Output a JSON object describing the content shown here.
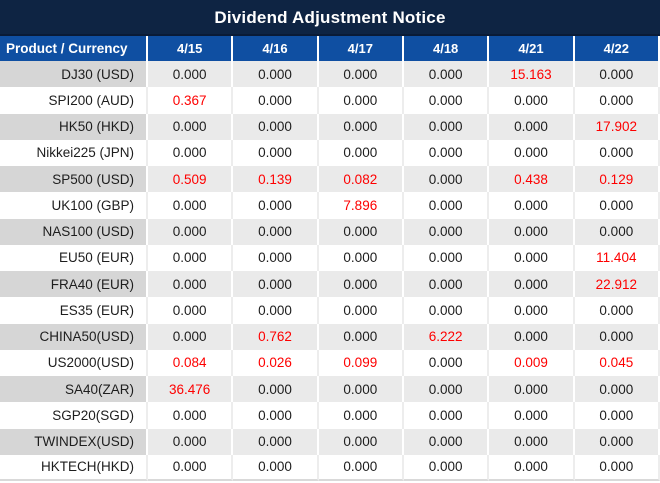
{
  "title": "Dividend Adjustment Notice",
  "colors": {
    "title_bar": "#0e2443",
    "header_blue": "#0f4fa2",
    "stripe_gray": "#eaeaea",
    "stripe_product_gray": "#d6d6d6",
    "negative_highlight_red": "#fe0000",
    "body_text": "#1d1d1d"
  },
  "table": {
    "product_header": "Product / Currency",
    "date_headers": [
      "4/15",
      "4/16",
      "4/17",
      "4/18",
      "4/21",
      "4/22"
    ],
    "rows": [
      {
        "product": "DJ30 (USD)",
        "values": [
          "0.000",
          "0.000",
          "0.000",
          "0.000",
          "15.163",
          "0.000"
        ],
        "red": [
          false,
          false,
          false,
          false,
          true,
          false
        ]
      },
      {
        "product": "SPI200 (AUD)",
        "values": [
          "0.367",
          "0.000",
          "0.000",
          "0.000",
          "0.000",
          "0.000"
        ],
        "red": [
          true,
          false,
          false,
          false,
          false,
          false
        ]
      },
      {
        "product": "HK50 (HKD)",
        "values": [
          "0.000",
          "0.000",
          "0.000",
          "0.000",
          "0.000",
          "17.902"
        ],
        "red": [
          false,
          false,
          false,
          false,
          false,
          true
        ]
      },
      {
        "product": "Nikkei225 (JPN)",
        "values": [
          "0.000",
          "0.000",
          "0.000",
          "0.000",
          "0.000",
          "0.000"
        ],
        "red": [
          false,
          false,
          false,
          false,
          false,
          false
        ]
      },
      {
        "product": "SP500 (USD)",
        "values": [
          "0.509",
          "0.139",
          "0.082",
          "0.000",
          "0.438",
          "0.129"
        ],
        "red": [
          true,
          true,
          true,
          false,
          true,
          true
        ]
      },
      {
        "product": "UK100 (GBP)",
        "values": [
          "0.000",
          "0.000",
          "7.896",
          "0.000",
          "0.000",
          "0.000"
        ],
        "red": [
          false,
          false,
          true,
          false,
          false,
          false
        ]
      },
      {
        "product": "NAS100 (USD)",
        "values": [
          "0.000",
          "0.000",
          "0.000",
          "0.000",
          "0.000",
          "0.000"
        ],
        "red": [
          false,
          false,
          false,
          false,
          false,
          false
        ]
      },
      {
        "product": "EU50 (EUR)",
        "values": [
          "0.000",
          "0.000",
          "0.000",
          "0.000",
          "0.000",
          "11.404"
        ],
        "red": [
          false,
          false,
          false,
          false,
          false,
          true
        ]
      },
      {
        "product": "FRA40 (EUR)",
        "values": [
          "0.000",
          "0.000",
          "0.000",
          "0.000",
          "0.000",
          "22.912"
        ],
        "red": [
          false,
          false,
          false,
          false,
          false,
          true
        ]
      },
      {
        "product": "ES35 (EUR)",
        "values": [
          "0.000",
          "0.000",
          "0.000",
          "0.000",
          "0.000",
          "0.000"
        ],
        "red": [
          false,
          false,
          false,
          false,
          false,
          false
        ]
      },
      {
        "product": "CHINA50(USD)",
        "values": [
          "0.000",
          "0.762",
          "0.000",
          "6.222",
          "0.000",
          "0.000"
        ],
        "red": [
          false,
          true,
          false,
          true,
          false,
          false
        ]
      },
      {
        "product": "US2000(USD)",
        "values": [
          "0.084",
          "0.026",
          "0.099",
          "0.000",
          "0.009",
          "0.045"
        ],
        "red": [
          true,
          true,
          true,
          false,
          true,
          true
        ]
      },
      {
        "product": "SA40(ZAR)",
        "values": [
          "36.476",
          "0.000",
          "0.000",
          "0.000",
          "0.000",
          "0.000"
        ],
        "red": [
          true,
          false,
          false,
          false,
          false,
          false
        ]
      },
      {
        "product": "SGP20(SGD)",
        "values": [
          "0.000",
          "0.000",
          "0.000",
          "0.000",
          "0.000",
          "0.000"
        ],
        "red": [
          false,
          false,
          false,
          false,
          false,
          false
        ]
      },
      {
        "product": "TWINDEX(USD)",
        "values": [
          "0.000",
          "0.000",
          "0.000",
          "0.000",
          "0.000",
          "0.000"
        ],
        "red": [
          false,
          false,
          false,
          false,
          false,
          false
        ]
      },
      {
        "product": "HKTECH(HKD)",
        "values": [
          "0.000",
          "0.000",
          "0.000",
          "0.000",
          "0.000",
          "0.000"
        ],
        "red": [
          false,
          false,
          false,
          false,
          false,
          false
        ]
      }
    ]
  }
}
